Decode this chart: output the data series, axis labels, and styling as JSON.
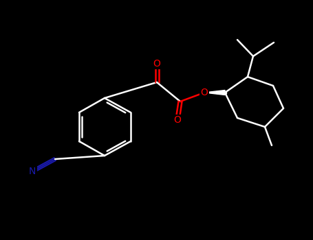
{
  "bg_color": "#000000",
  "white": "#ffffff",
  "red": "#ff0000",
  "blue": "#1a1aaa",
  "gray": "#555555",
  "lw": 1.8,
  "atoms": {
    "N": {
      "color": "#2020b0"
    },
    "O": {
      "color": "#ff0000"
    },
    "C": {
      "color": "#ffffff"
    }
  },
  "font_size": 10
}
